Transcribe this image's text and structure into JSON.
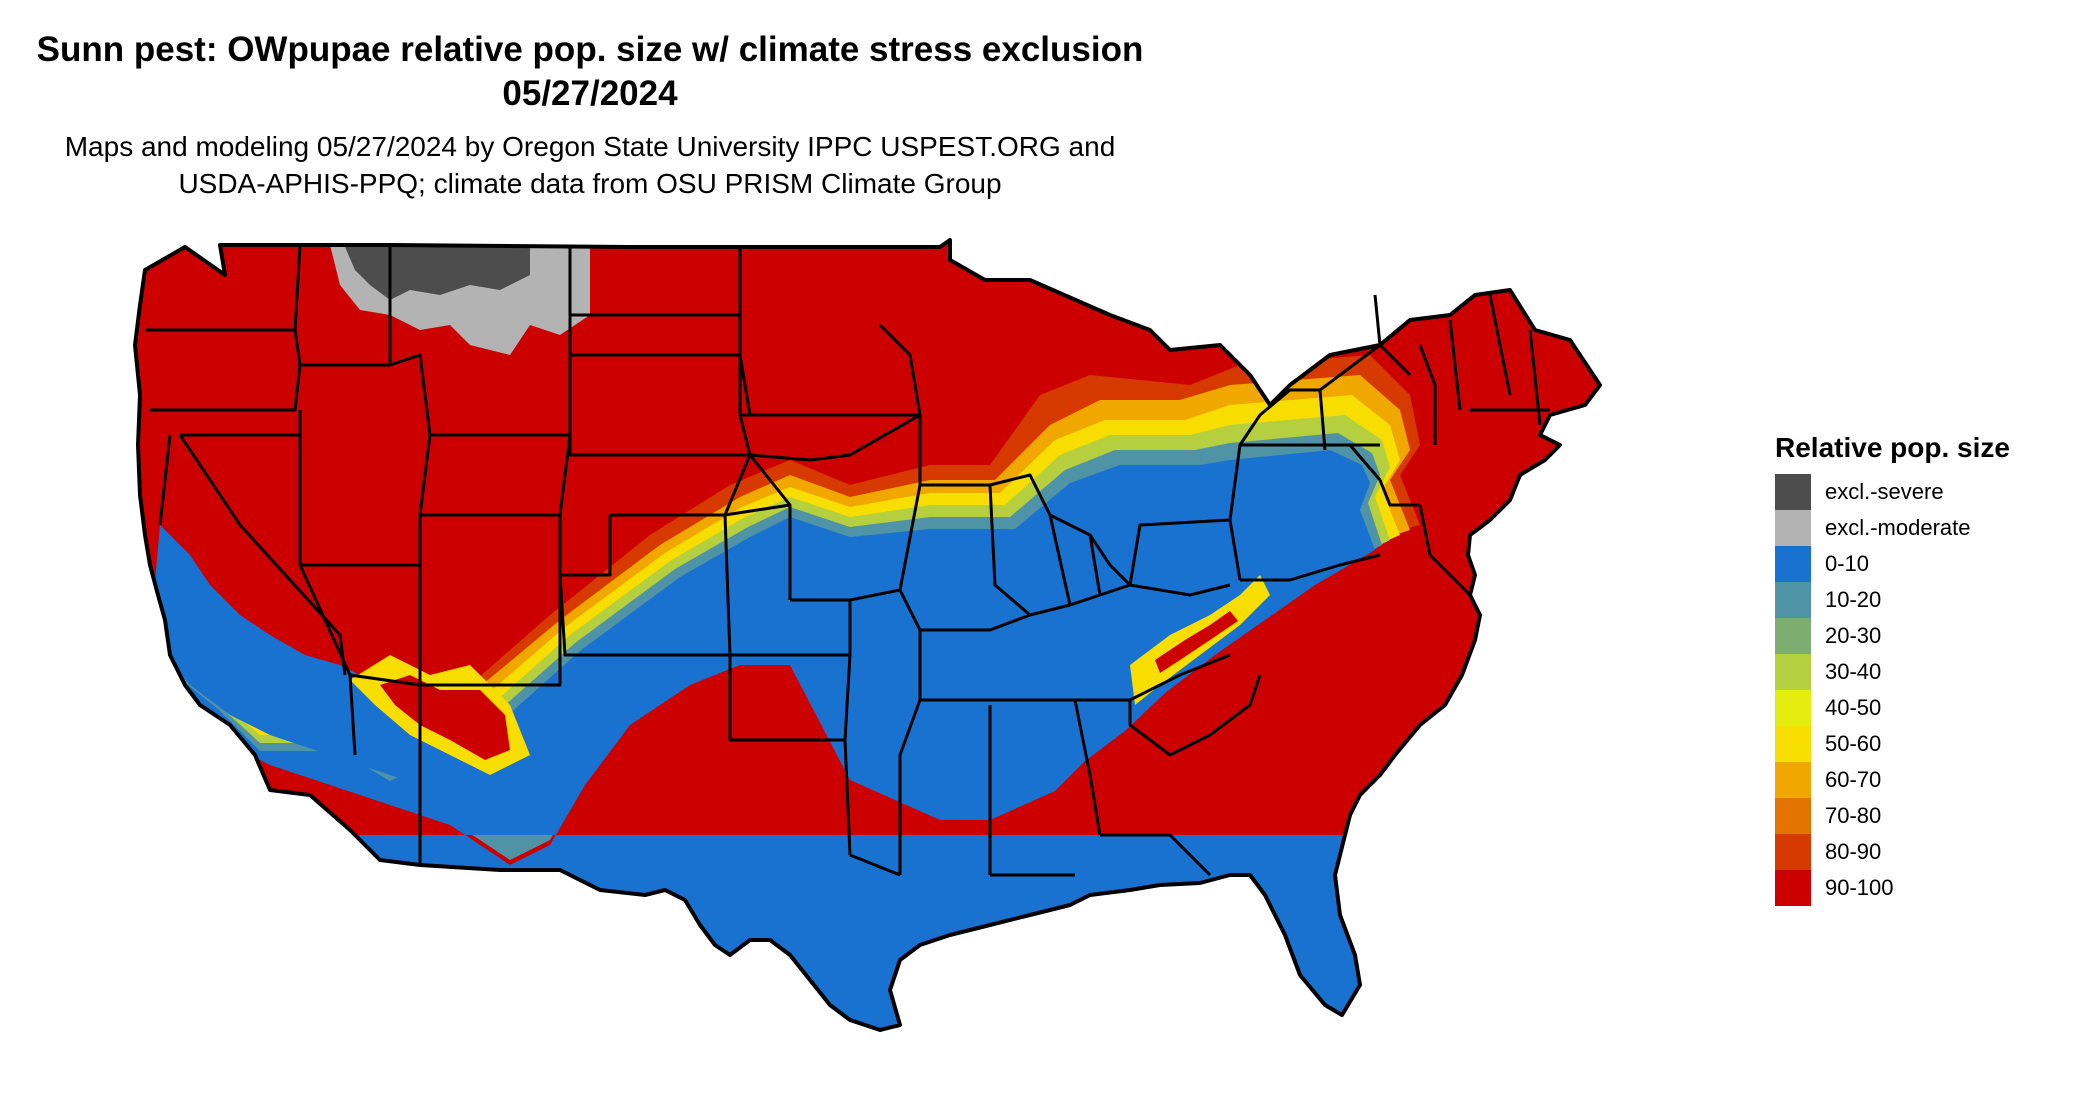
{
  "title": {
    "line1": "Sunn pest: OWpupae relative pop. size w/ climate stress exclusion",
    "line2": "05/27/2024"
  },
  "subtitle": {
    "line1": "Maps and modeling 05/27/2024 by Oregon State University IPPC USPEST.ORG and",
    "line2": "USDA-APHIS-PPQ; climate data from OSU PRISM Climate Group"
  },
  "legend": {
    "title": "Relative pop. size",
    "items": [
      {
        "label": "excl.-severe",
        "color": "#4d4d4d"
      },
      {
        "label": "excl.-moderate",
        "color": "#b3b3b3"
      },
      {
        "label": "0-10",
        "color": "#1a72d0"
      },
      {
        "label": "10-20",
        "color": "#4f93a7"
      },
      {
        "label": "20-30",
        "color": "#7ead72"
      },
      {
        "label": "30-40",
        "color": "#b5cf3f"
      },
      {
        "label": "40-50",
        "color": "#e4ec10"
      },
      {
        "label": "50-60",
        "color": "#f8de00"
      },
      {
        "label": "60-70",
        "color": "#f0a800"
      },
      {
        "label": "70-80",
        "color": "#e47400"
      },
      {
        "label": "80-90",
        "color": "#d73a00"
      },
      {
        "label": "90-100",
        "color": "#cc0000"
      }
    ]
  },
  "map": {
    "region": "conterminous United States",
    "patterns": {
      "north_and_west": "90-100",
      "south_and_southeast": "0-10",
      "transition_band": "10-20 through 80-90",
      "montana_wyoming": "excl.-moderate / excl.-severe"
    }
  }
}
